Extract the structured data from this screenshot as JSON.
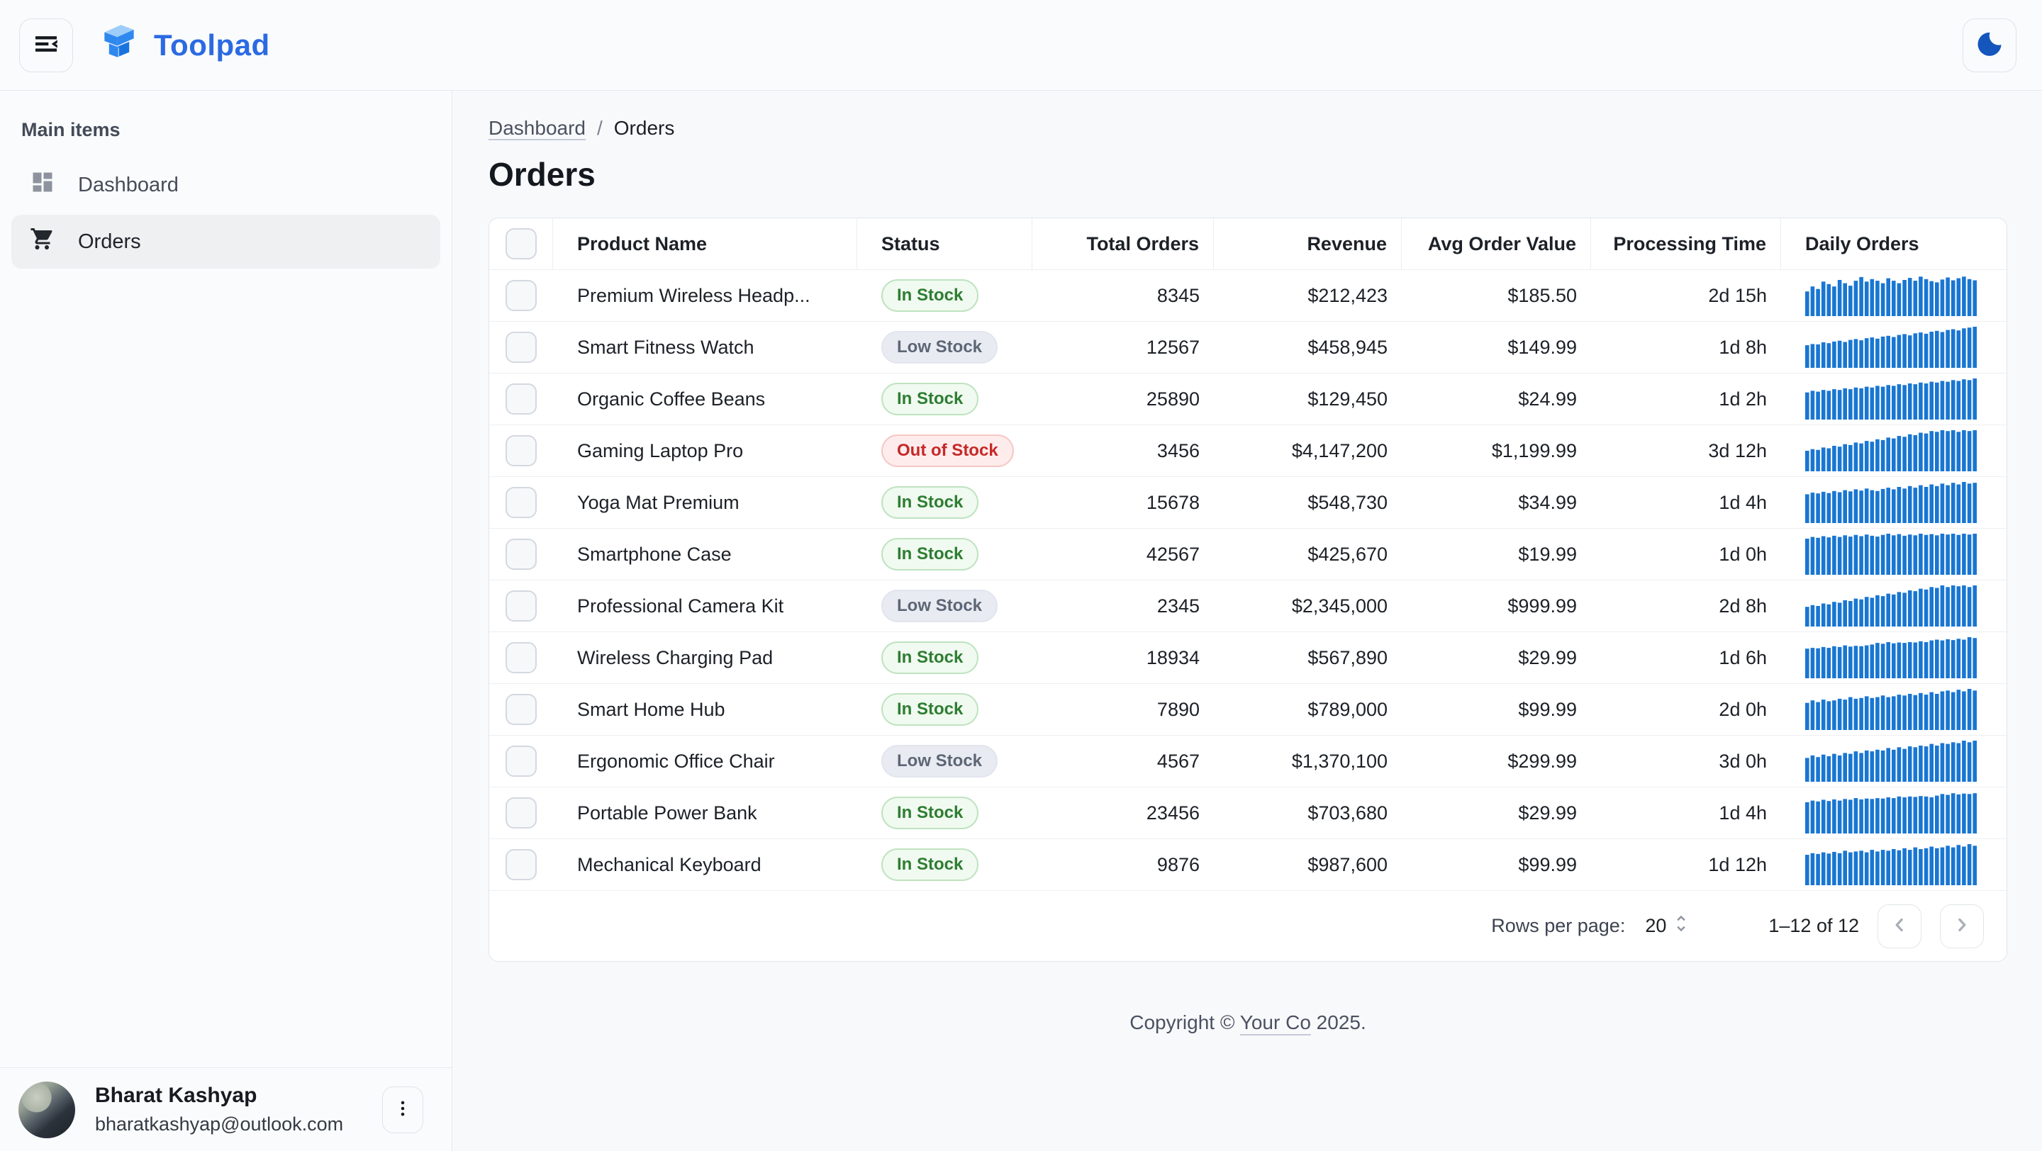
{
  "header": {
    "app_name": "Toolpad"
  },
  "sidebar": {
    "section_label": "Main items",
    "items": [
      {
        "label": "Dashboard",
        "icon": "dashboard-icon",
        "selected": false
      },
      {
        "label": "Orders",
        "icon": "shopping-cart-icon",
        "selected": true
      }
    ]
  },
  "user": {
    "name": "Bharat Kashyap",
    "email": "bharatkashyap@outlook.com"
  },
  "breadcrumb": {
    "parent": "Dashboard",
    "separator": "/",
    "current": "Orders"
  },
  "page": {
    "title": "Orders"
  },
  "table": {
    "columns": [
      "Product Name",
      "Status",
      "Total Orders",
      "Revenue",
      "Avg Order Value",
      "Processing Time",
      "Daily Orders"
    ],
    "rows": [
      {
        "product": "Premium Wireless Headp...",
        "status": "In Stock",
        "total_orders": "8345",
        "revenue": "$212,423",
        "avg_order_value": "$185.50",
        "processing_time": "2d 15h",
        "sparkline": [
          0.6,
          0.72,
          0.66,
          0.84,
          0.78,
          0.72,
          0.88,
          0.8,
          0.74,
          0.86,
          0.95,
          0.84,
          0.9,
          0.86,
          0.8,
          0.92,
          0.86,
          0.8,
          0.88,
          0.93,
          0.86,
          0.96,
          0.9,
          0.85,
          0.82,
          0.89,
          0.94,
          0.87,
          0.92,
          0.96,
          0.9,
          0.87
        ]
      },
      {
        "product": "Smart Fitness Watch",
        "status": "Low Stock",
        "total_orders": "12567",
        "revenue": "$458,945",
        "avg_order_value": "$149.99",
        "processing_time": "1d 8h",
        "sparkline": [
          0.55,
          0.58,
          0.57,
          0.62,
          0.6,
          0.64,
          0.66,
          0.63,
          0.68,
          0.7,
          0.67,
          0.72,
          0.74,
          0.71,
          0.76,
          0.78,
          0.75,
          0.8,
          0.82,
          0.79,
          0.84,
          0.86,
          0.83,
          0.88,
          0.9,
          0.87,
          0.92,
          0.94,
          0.91,
          0.96,
          0.98,
          1.0
        ]
      },
      {
        "product": "Organic Coffee Beans",
        "status": "In Stock",
        "total_orders": "25890",
        "revenue": "$129,450",
        "avg_order_value": "$24.99",
        "processing_time": "1d 2h",
        "sparkline": [
          0.66,
          0.7,
          0.68,
          0.72,
          0.7,
          0.74,
          0.72,
          0.76,
          0.74,
          0.78,
          0.76,
          0.8,
          0.78,
          0.82,
          0.8,
          0.84,
          0.82,
          0.86,
          0.84,
          0.88,
          0.86,
          0.9,
          0.88,
          0.92,
          0.9,
          0.94,
          0.92,
          0.96,
          0.94,
          0.98,
          0.96,
          1.0
        ]
      },
      {
        "product": "Gaming Laptop Pro",
        "status": "Out of Stock",
        "total_orders": "3456",
        "revenue": "$4,147,200",
        "avg_order_value": "$1,199.99",
        "processing_time": "3d 12h",
        "sparkline": [
          0.5,
          0.54,
          0.52,
          0.58,
          0.56,
          0.62,
          0.6,
          0.66,
          0.64,
          0.7,
          0.68,
          0.74,
          0.72,
          0.78,
          0.76,
          0.82,
          0.8,
          0.86,
          0.84,
          0.9,
          0.88,
          0.94,
          0.92,
          0.98,
          0.96,
          1.0,
          0.98,
          1.0,
          0.96,
          1.0,
          0.98,
          1.0
        ]
      },
      {
        "product": "Yoga Mat Premium",
        "status": "In Stock",
        "total_orders": "15678",
        "revenue": "$548,730",
        "avg_order_value": "$34.99",
        "processing_time": "1d 4h",
        "sparkline": [
          0.7,
          0.74,
          0.72,
          0.76,
          0.73,
          0.78,
          0.75,
          0.8,
          0.77,
          0.82,
          0.79,
          0.84,
          0.8,
          0.78,
          0.83,
          0.86,
          0.82,
          0.88,
          0.84,
          0.9,
          0.86,
          0.92,
          0.88,
          0.94,
          0.9,
          0.96,
          0.92,
          0.98,
          0.94,
          1.0,
          0.96,
          0.98
        ]
      },
      {
        "product": "Smartphone Case",
        "status": "In Stock",
        "total_orders": "42567",
        "revenue": "$425,670",
        "avg_order_value": "$19.99",
        "processing_time": "1d 0h",
        "sparkline": [
          0.88,
          0.92,
          0.9,
          0.94,
          0.91,
          0.95,
          0.92,
          0.96,
          0.93,
          0.97,
          0.94,
          0.98,
          0.95,
          0.93,
          0.97,
          1.0,
          0.96,
          0.99,
          0.95,
          0.98,
          0.96,
          1.0,
          0.97,
          0.99,
          0.96,
          1.0,
          0.98,
          1.0,
          0.97,
          1.0,
          0.98,
          1.0
        ]
      },
      {
        "product": "Professional Camera Kit",
        "status": "Low Stock",
        "total_orders": "2345",
        "revenue": "$2,345,000",
        "avg_order_value": "$999.99",
        "processing_time": "2d 8h",
        "sparkline": [
          0.48,
          0.52,
          0.5,
          0.56,
          0.54,
          0.6,
          0.58,
          0.64,
          0.62,
          0.68,
          0.66,
          0.72,
          0.7,
          0.76,
          0.74,
          0.8,
          0.78,
          0.84,
          0.82,
          0.88,
          0.86,
          0.92,
          0.9,
          0.96,
          0.94,
          1.0,
          0.96,
          1.0,
          0.98,
          1.0,
          0.96,
          1.0
        ]
      },
      {
        "product": "Wireless Charging Pad",
        "status": "In Stock",
        "total_orders": "18934",
        "revenue": "$567,890",
        "avg_order_value": "$29.99",
        "processing_time": "1d 6h",
        "sparkline": [
          0.72,
          0.74,
          0.73,
          0.76,
          0.74,
          0.78,
          0.76,
          0.8,
          0.77,
          0.79,
          0.78,
          0.8,
          0.82,
          0.86,
          0.84,
          0.88,
          0.85,
          0.87,
          0.86,
          0.88,
          0.87,
          0.9,
          0.88,
          0.92,
          0.94,
          0.92,
          0.95,
          0.93,
          0.96,
          0.94,
          1.0,
          0.98
        ]
      },
      {
        "product": "Smart Home Hub",
        "status": "In Stock",
        "total_orders": "7890",
        "revenue": "$789,000",
        "avg_order_value": "$99.99",
        "processing_time": "2d 0h",
        "sparkline": [
          0.66,
          0.72,
          0.68,
          0.74,
          0.7,
          0.72,
          0.76,
          0.74,
          0.8,
          0.76,
          0.78,
          0.82,
          0.78,
          0.8,
          0.84,
          0.8,
          0.82,
          0.86,
          0.84,
          0.88,
          0.85,
          0.9,
          0.86,
          0.92,
          0.88,
          0.94,
          0.96,
          0.92,
          0.98,
          0.94,
          1.0,
          0.96
        ]
      },
      {
        "product": "Ergonomic Office Chair",
        "status": "Low Stock",
        "total_orders": "4567",
        "revenue": "$1,370,100",
        "avg_order_value": "$299.99",
        "processing_time": "3d 0h",
        "sparkline": [
          0.58,
          0.64,
          0.6,
          0.66,
          0.62,
          0.68,
          0.64,
          0.7,
          0.68,
          0.74,
          0.7,
          0.76,
          0.74,
          0.78,
          0.76,
          0.82,
          0.78,
          0.84,
          0.8,
          0.86,
          0.84,
          0.88,
          0.86,
          0.92,
          0.88,
          0.94,
          0.92,
          0.96,
          0.94,
          1.0,
          0.96,
          1.0
        ]
      },
      {
        "product": "Portable Power Bank",
        "status": "In Stock",
        "total_orders": "23456",
        "revenue": "$703,680",
        "avg_order_value": "$29.99",
        "processing_time": "1d 4h",
        "sparkline": [
          0.76,
          0.8,
          0.78,
          0.82,
          0.79,
          0.83,
          0.8,
          0.84,
          0.82,
          0.86,
          0.83,
          0.85,
          0.84,
          0.86,
          0.85,
          0.88,
          0.86,
          0.9,
          0.88,
          0.9,
          0.89,
          0.91,
          0.9,
          0.88,
          0.92,
          0.96,
          0.94,
          0.98,
          0.95,
          0.97,
          0.96,
          0.98
        ]
      },
      {
        "product": "Mechanical Keyboard",
        "status": "In Stock",
        "total_orders": "9876",
        "revenue": "$987,600",
        "avg_order_value": "$99.99",
        "processing_time": "1d 12h",
        "sparkline": [
          0.74,
          0.78,
          0.76,
          0.8,
          0.77,
          0.81,
          0.78,
          0.84,
          0.8,
          0.82,
          0.84,
          0.8,
          0.86,
          0.82,
          0.86,
          0.84,
          0.88,
          0.85,
          0.9,
          0.86,
          0.92,
          0.88,
          0.9,
          0.94,
          0.9,
          0.92,
          0.96,
          0.92,
          0.98,
          0.94,
          1.0,
          0.96
        ]
      }
    ]
  },
  "pagination": {
    "rows_per_page_label": "Rows per page:",
    "rows_per_page": "20",
    "range": "1–12 of 12"
  },
  "footer": {
    "prefix": "Copyright © ",
    "link": "Your Co",
    "suffix": " 2025."
  },
  "icons": {
    "collapse_menu": "collapse-menu-icon",
    "theme_toggle": "moon-icon",
    "dashboard": "dashboard-grid-icon",
    "orders": "shopping-cart-icon",
    "more": "more-vert-icon",
    "rows_select": "unfold-more-icon",
    "prev": "chevron-left-icon",
    "next": "chevron-right-icon"
  },
  "colors": {
    "accent": "#2b6ae2",
    "sparkline": "#1976d2",
    "status_in_stock": "#2e7d32",
    "status_low_stock": "#5d6675",
    "status_out_of_stock": "#c62828"
  }
}
